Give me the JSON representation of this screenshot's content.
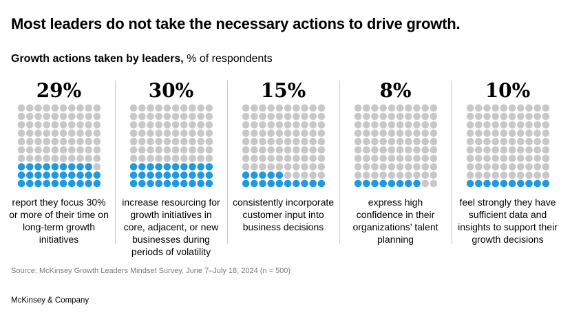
{
  "title": "Most leaders do not take the necessary actions to drive growth.",
  "subtitle": {
    "bold": "Growth actions taken by leaders,",
    "rest": " % of respondents"
  },
  "chart_data": {
    "type": "waffle",
    "grid": {
      "rows": 10,
      "cols": 10
    },
    "colors": {
      "filled": "#1f9ae0",
      "empty": "#c8c8c8"
    },
    "items": [
      {
        "label": "29%",
        "value": 29,
        "description": "report they focus 30% or more of their time on long-term growth initiatives"
      },
      {
        "label": "30%",
        "value": 30,
        "description": "increase resourcing for growth initiatives in core, adjacent, or new businesses during periods of volatility"
      },
      {
        "label": "15%",
        "value": 15,
        "description": "consistently incorporate customer input into business decisions"
      },
      {
        "label": "8%",
        "value": 8,
        "description": "express high confidence in their organizations’ talent planning"
      },
      {
        "label": "10%",
        "value": 10,
        "description": "feel strongly they have sufficient data and insights to support their growth decisions"
      }
    ]
  },
  "source": "Source: McKinsey Growth Leaders Mindset Survey, June 7–July 18, 2024 (n = 500)",
  "brand": "McKinsey & Company"
}
